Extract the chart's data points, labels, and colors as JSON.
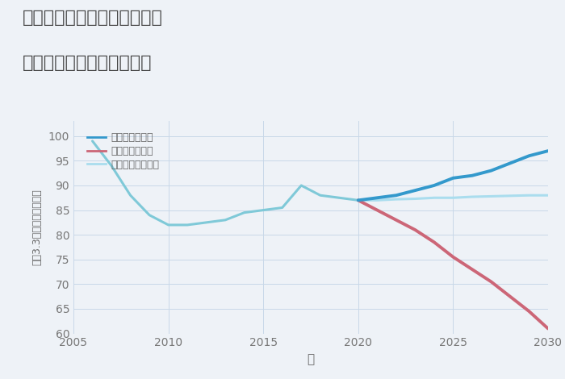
{
  "title_line1": "三重県桑名市長島町鎌ヶ地の",
  "title_line2": "中古マンションの価格推移",
  "xlabel": "年",
  "ylabel_chars": [
    "坪",
    "（",
    "3",
    ".",
    "3",
    "㎡",
    "）",
    "単",
    "価",
    "（",
    "万",
    "円",
    "）"
  ],
  "xlim": [
    2005,
    2030
  ],
  "ylim": [
    60,
    103
  ],
  "yticks": [
    60,
    65,
    70,
    75,
    80,
    85,
    90,
    95,
    100
  ],
  "xticks": [
    2005,
    2010,
    2015,
    2020,
    2025,
    2030
  ],
  "background_color": "#eef2f7",
  "plot_bg_color": "#eef2f7",
  "historical_x": [
    2006,
    2007,
    2008,
    2009,
    2010,
    2011,
    2012,
    2013,
    2014,
    2015,
    2016,
    2017,
    2018,
    2019,
    2020
  ],
  "historical_y": [
    99,
    94,
    88,
    84,
    82,
    82,
    82.5,
    83,
    84.5,
    85,
    85.5,
    90,
    88,
    87.5,
    87
  ],
  "good_x": [
    2020,
    2021,
    2022,
    2023,
    2024,
    2025,
    2026,
    2027,
    2028,
    2029,
    2030
  ],
  "good_y": [
    87,
    87.5,
    88,
    89,
    90,
    91.5,
    92,
    93,
    94.5,
    96,
    97
  ],
  "bad_x": [
    2020,
    2021,
    2022,
    2023,
    2024,
    2025,
    2026,
    2027,
    2028,
    2029,
    2030
  ],
  "bad_y": [
    87,
    85,
    83,
    81,
    78.5,
    75.5,
    73,
    70.5,
    67.5,
    64.5,
    61
  ],
  "normal_x": [
    2020,
    2021,
    2022,
    2023,
    2024,
    2025,
    2026,
    2027,
    2028,
    2029,
    2030
  ],
  "normal_y": [
    87,
    87,
    87.2,
    87.3,
    87.5,
    87.5,
    87.7,
    87.8,
    87.9,
    88,
    88
  ],
  "color_historical": "#7fc9d8",
  "color_good": "#3399cc",
  "color_bad": "#cc6677",
  "color_normal": "#aaddee",
  "legend_labels": [
    "グッドシナリオ",
    "バッドシナリオ",
    "ノーマルシナリオ"
  ],
  "grid_color": "#c8d8e8",
  "title_color": "#444444",
  "tick_color": "#777777",
  "label_color": "#666666"
}
